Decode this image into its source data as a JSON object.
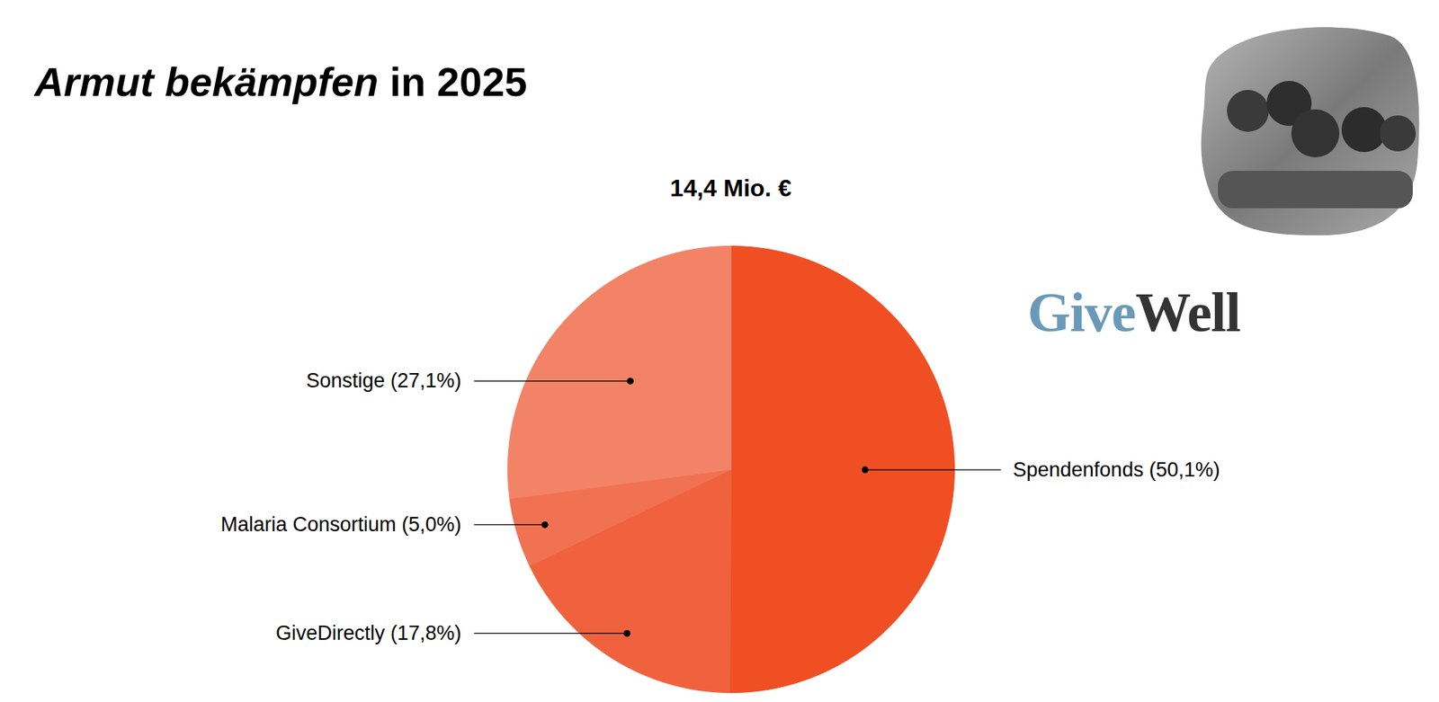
{
  "chart_data": {
    "type": "pie",
    "title": "Armut bekämpfen in 2025",
    "subtitle": "14,4 Mio. €",
    "logo": [
      "Give",
      "Well"
    ],
    "categories": [
      "Spendenfonds",
      "GiveDirectly",
      "Malaria Consortium",
      "Sonstige"
    ],
    "values": [
      50.1,
      17.8,
      5.0,
      27.1
    ],
    "value_labels": [
      "Spendenfonds (50,1%)",
      "GiveDirectly (17,8%)",
      "Malaria Consortium (5,0%)",
      "Sonstige (27,1%)"
    ],
    "colors": [
      "#ef4f23",
      "#f0623d",
      "#f07252",
      "#f28367"
    ],
    "data_labels": true
  }
}
